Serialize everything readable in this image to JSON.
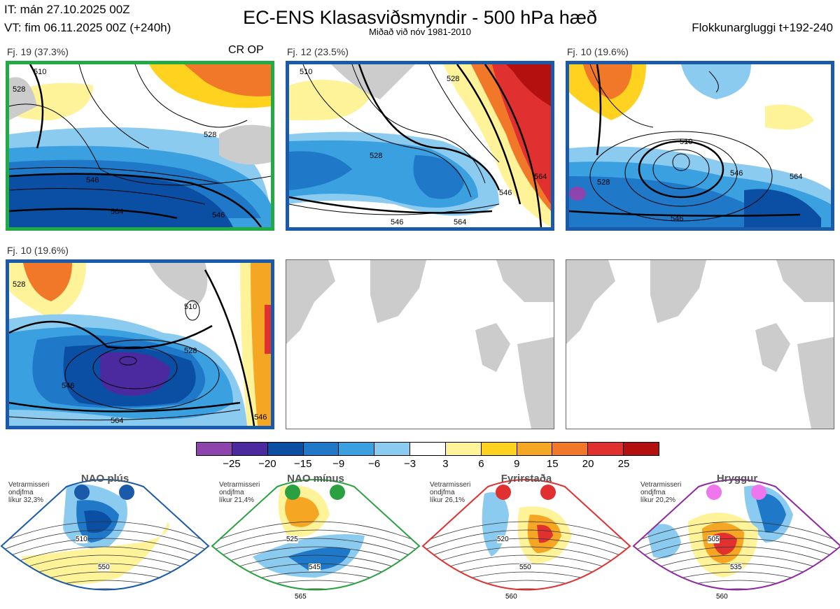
{
  "header": {
    "init_time": "IT: mán 27.10.2025 00Z",
    "valid_time": "VT: fim 06.11.2025 00Z  (+240h)",
    "title": "EC-ENS Klasasviðsmyndir - 500 hPa hæð",
    "subtitle": "Miðað við nóv 1981-2010",
    "window": "Flokkunargluggi t+192-240"
  },
  "panels": [
    {
      "label": "Fj. 19 (37.3%)",
      "tag": "CR OP",
      "border": "#22aa44",
      "contours": [
        "528",
        "546",
        "564",
        "510",
        "528",
        "546"
      ]
    },
    {
      "label": "Fj. 12 (23.5%)",
      "tag": "",
      "border": "#1a5aa8",
      "contours": [
        "528",
        "510",
        "546",
        "564",
        "528",
        "546",
        "564"
      ]
    },
    {
      "label": "Fj. 10 (19.6%)",
      "tag": "",
      "border": "#1a5aa8",
      "contours": [
        "510",
        "528",
        "546",
        "564",
        "546"
      ]
    },
    {
      "label": "Fj. 10 (19.6%)",
      "tag": "",
      "border": "#1a5aa8",
      "contours": [
        "528",
        "510",
        "528",
        "546",
        "564",
        "546"
      ]
    }
  ],
  "colorbar": {
    "colors": [
      "#8e44ad",
      "#4b2aa0",
      "#0a4fa3",
      "#1f78c8",
      "#3aa0e0",
      "#8ccbf0",
      "#ffffff",
      "#fff39a",
      "#ffd21f",
      "#f5a623",
      "#f07828",
      "#e03030",
      "#b51010"
    ],
    "ticks": [
      "−25",
      "−20",
      "−15",
      "−9",
      "−6",
      "−3",
      "3",
      "6",
      "9",
      "15",
      "20",
      "25"
    ]
  },
  "regimes": [
    {
      "name": "NAO plús",
      "text": [
        "Vetrarmisseri",
        "ondjfma",
        "líkur 32,3%"
      ],
      "border": "#1a5aa8",
      "dot": "#1a5aa8",
      "contours": [
        "510",
        "550"
      ]
    },
    {
      "name": "NAO mínus",
      "text": [
        "Vetrarmisseri",
        "ondjfma",
        "líkur 21,4%"
      ],
      "border": "#2aa040",
      "dot": "#2aa040",
      "contours": [
        "525",
        "545",
        "565"
      ]
    },
    {
      "name": "Fyrirstaða",
      "text": [
        "Vetrarmisseri",
        "ondjfma",
        "líkur 26,1%"
      ],
      "border": "#e03030",
      "dot": "#e03030",
      "contours": [
        "520",
        "550",
        "560"
      ]
    },
    {
      "name": "Hryggur",
      "text": [
        "Vetrarmisseri",
        "ondjfma",
        "líkur 20,2%"
      ],
      "border": "#8e2aa0",
      "dot": "#ee77ee",
      "contours": [
        "505",
        "535",
        "560"
      ]
    }
  ]
}
